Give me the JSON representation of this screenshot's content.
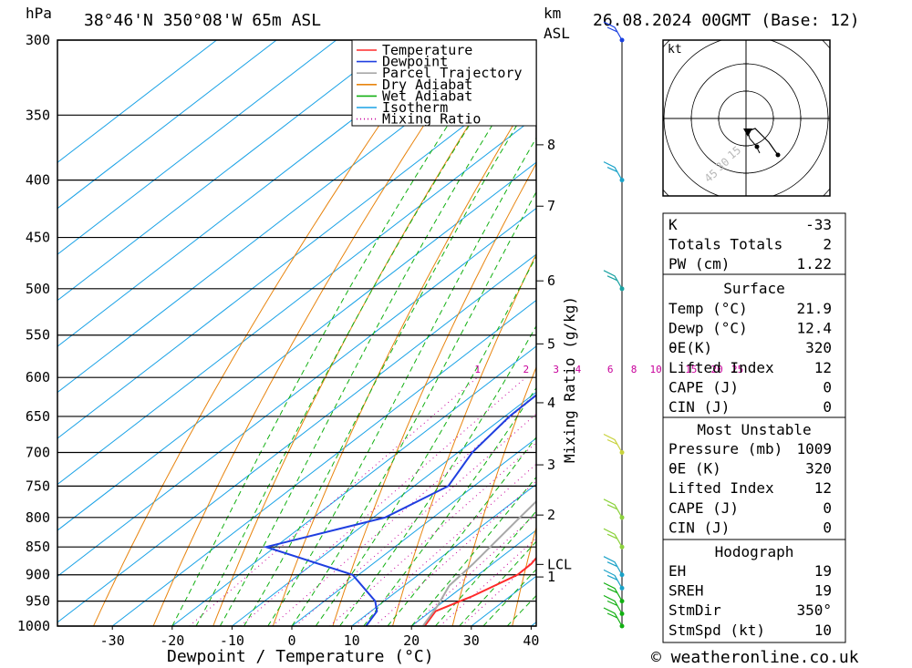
{
  "header": {
    "pressure_unit": "hPa",
    "location": "38°46'N  350°08'W  65m  ASL",
    "km_unit": "km",
    "asl_unit": "ASL",
    "date": "26.08.2024  00GMT  (Base: 12)"
  },
  "footer": {
    "copyright": "© weatheronline.co.uk"
  },
  "colors": {
    "temperature": "#ff2a2a",
    "dewpoint": "#1f3fe0",
    "parcel": "#a8a8a8",
    "dry_adiabat": "#e8840e",
    "wet_adiabat": "#12b012",
    "isotherm": "#1aa2e6",
    "mixing_ratio": "#c8009b"
  },
  "legend": [
    {
      "label": "Temperature",
      "key": "temperature",
      "style": "solid"
    },
    {
      "label": "Dewpoint",
      "key": "dewpoint",
      "style": "solid"
    },
    {
      "label": "Parcel Trajectory",
      "key": "parcel",
      "style": "solid"
    },
    {
      "label": "Dry Adiabat",
      "key": "dry_adiabat",
      "style": "solid"
    },
    {
      "label": "Wet Adiabat",
      "key": "wet_adiabat",
      "style": "solid"
    },
    {
      "label": "Isotherm",
      "key": "isotherm",
      "style": "solid"
    },
    {
      "label": "Mixing Ratio",
      "key": "mixing_ratio",
      "style": "dotted"
    }
  ],
  "chart_data": {
    "type": "line",
    "xlabel": "Dewpoint / Temperature (°C)",
    "ylabel": "hPa",
    "mixing_ratio_axis_label": "Mixing Ratio (g/kg)",
    "xlim": [
      -40,
      40
    ],
    "x_ticks": [
      -30,
      -20,
      -10,
      0,
      10,
      20,
      30,
      40
    ],
    "y_ticks": [
      300,
      350,
      400,
      450,
      500,
      550,
      600,
      650,
      700,
      750,
      800,
      850,
      900,
      950,
      1000
    ],
    "km_ticks": [
      {
        "label": "8",
        "pressure": 372
      },
      {
        "label": "7",
        "pressure": 422
      },
      {
        "label": "6",
        "pressure": 492
      },
      {
        "label": "5",
        "pressure": 560
      },
      {
        "label": "4",
        "pressure": 632
      },
      {
        "label": "3",
        "pressure": 718
      },
      {
        "label": "2",
        "pressure": 796
      },
      {
        "label": "LCL",
        "pressure": 881
      },
      {
        "label": "1",
        "pressure": 904
      }
    ],
    "mixing_ratio_labels": [
      "1",
      "2",
      "3",
      "4",
      "6",
      "8",
      "10",
      "15",
      "20",
      "25"
    ],
    "series": [
      {
        "name": "Temperature",
        "points": [
          [
            22.2,
            1000
          ],
          [
            20.8,
            970
          ],
          [
            23.7,
            940
          ],
          [
            26.6,
            900
          ],
          [
            26.5,
            880
          ],
          [
            25.2,
            850
          ],
          [
            23.3,
            800
          ],
          [
            20.9,
            750
          ],
          [
            18.3,
            700
          ],
          [
            16.0,
            650
          ],
          [
            12.9,
            600
          ],
          [
            10.8,
            560
          ],
          [
            8.8,
            520
          ],
          [
            6.6,
            480
          ],
          [
            4.5,
            450
          ],
          [
            0.5,
            400
          ],
          [
            -4.0,
            350
          ],
          [
            -9.0,
            300
          ]
        ]
      },
      {
        "name": "Dewpoint",
        "points": [
          [
            12.4,
            1000
          ],
          [
            11.0,
            970
          ],
          [
            8.5,
            950
          ],
          [
            -1.0,
            900
          ],
          [
            -21.5,
            850
          ],
          [
            -8.0,
            800
          ],
          [
            -4.3,
            750
          ],
          [
            -7.6,
            700
          ],
          [
            -9.2,
            650
          ],
          [
            -9.5,
            600
          ],
          [
            -2.0,
            550
          ],
          [
            -5.1,
            500
          ],
          [
            -11.5,
            450
          ],
          [
            -19.3,
            400
          ],
          [
            -27.0,
            300
          ]
        ]
      },
      {
        "name": "Parcel Trajectory",
        "points": [
          [
            21.9,
            1000
          ],
          [
            20.0,
            960
          ],
          [
            17.5,
            920
          ],
          [
            16.8,
            881
          ],
          [
            14.5,
            800
          ],
          [
            11.5,
            700
          ],
          [
            8.0,
            600
          ],
          [
            3.5,
            500
          ],
          [
            -2.5,
            400
          ],
          [
            -11.5,
            310
          ]
        ]
      }
    ],
    "wind_barbs": [
      {
        "pressure": 1000,
        "color": "#12b012"
      },
      {
        "pressure": 975,
        "color": "#12b012"
      },
      {
        "pressure": 950,
        "color": "#12b012"
      },
      {
        "pressure": 925,
        "color": "#1aa2c8"
      },
      {
        "pressure": 900,
        "color": "#1aa2c8"
      },
      {
        "pressure": 850,
        "color": "#8cd23c"
      },
      {
        "pressure": 800,
        "color": "#8cd23c"
      },
      {
        "pressure": 700,
        "color": "#c8d23c"
      },
      {
        "pressure": 500,
        "color": "#1aa2a2"
      },
      {
        "pressure": 400,
        "color": "#1aa2c8"
      },
      {
        "pressure": 300,
        "color": "#1a40e0"
      }
    ]
  },
  "hodograph": {
    "unit_label": "kt",
    "ring_labels": [
      "15",
      "30",
      "45"
    ]
  },
  "indices": {
    "general": [
      {
        "label": "K",
        "value": "-33"
      },
      {
        "label": "Totals Totals",
        "value": "2"
      },
      {
        "label": "PW (cm)",
        "value": "1.22"
      }
    ],
    "surface": {
      "title": "Surface",
      "rows": [
        {
          "label": "Temp (°C)",
          "value": "21.9"
        },
        {
          "label": "Dewp (°C)",
          "value": "12.4"
        },
        {
          "label": "θE(K)",
          "value": "320"
        },
        {
          "label": "Lifted Index",
          "value": "12"
        },
        {
          "label": "CAPE (J)",
          "value": "0"
        },
        {
          "label": "CIN (J)",
          "value": "0"
        }
      ]
    },
    "most_unstable": {
      "title": "Most Unstable",
      "rows": [
        {
          "label": "Pressure (mb)",
          "value": "1009"
        },
        {
          "label": "θE (K)",
          "value": "320"
        },
        {
          "label": "Lifted Index",
          "value": "12"
        },
        {
          "label": "CAPE (J)",
          "value": "0"
        },
        {
          "label": "CIN (J)",
          "value": "0"
        }
      ]
    },
    "hodograph_box": {
      "title": "Hodograph",
      "rows": [
        {
          "label": "EH",
          "value": "19"
        },
        {
          "label": "SREH",
          "value": "19"
        },
        {
          "label": "StmDir",
          "value": "350°"
        },
        {
          "label": "StmSpd (kt)",
          "value": "10"
        }
      ]
    }
  }
}
